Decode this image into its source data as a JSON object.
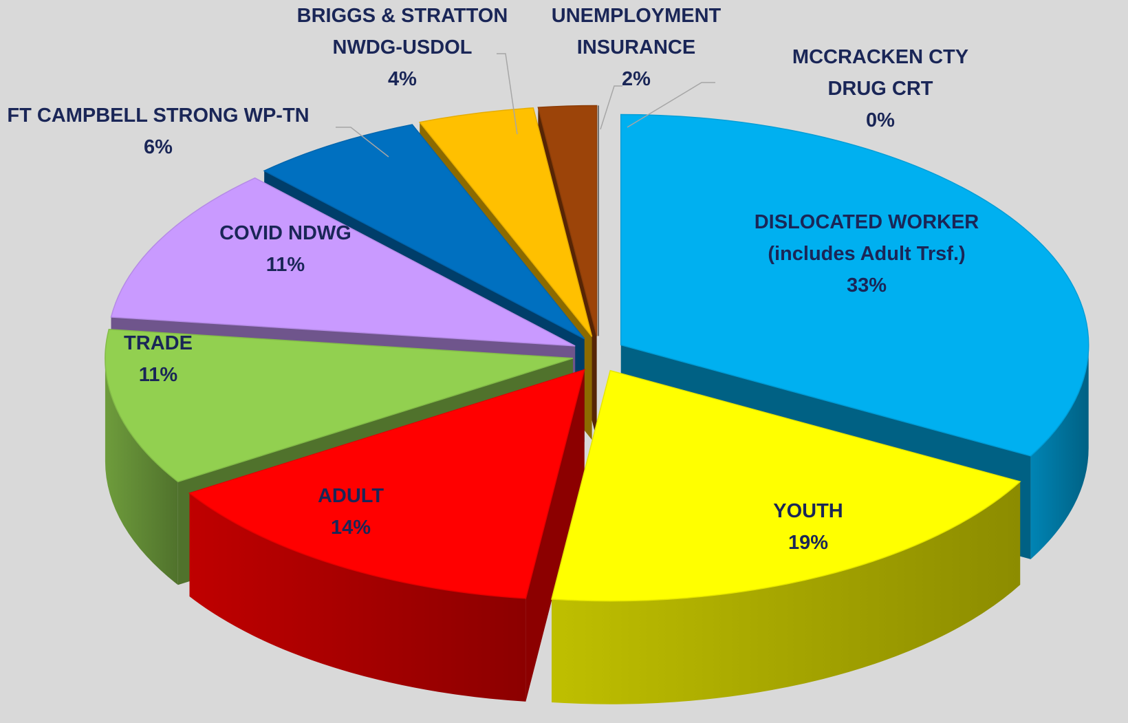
{
  "chart_data": {
    "type": "pie3d",
    "categories": [
      "DISLOCATED WORKER (includes Adult Trsf.)",
      "YOUTH",
      "ADULT",
      "TRADE",
      "COVID NDWG",
      "FT CAMPBELL STRONG WP-TN",
      "BRIGGS & STRATTON NWDG-USDOL",
      "UNEMPLOYMENT INSURANCE",
      "MCCRACKEN CTY DRUG CRT"
    ],
    "values": [
      33,
      19,
      14,
      11,
      11,
      6,
      4,
      2,
      0
    ],
    "value_labels": [
      "33%",
      "19%",
      "14%",
      "11%",
      "11%",
      "6%",
      "4%",
      "2%",
      "0%"
    ],
    "colors": [
      "#00b0f0",
      "#ffff00",
      "#ff0000",
      "#92d050",
      "#c99aff",
      "#0070c0",
      "#ffc000",
      "#9c4409",
      "#595959"
    ]
  }
}
